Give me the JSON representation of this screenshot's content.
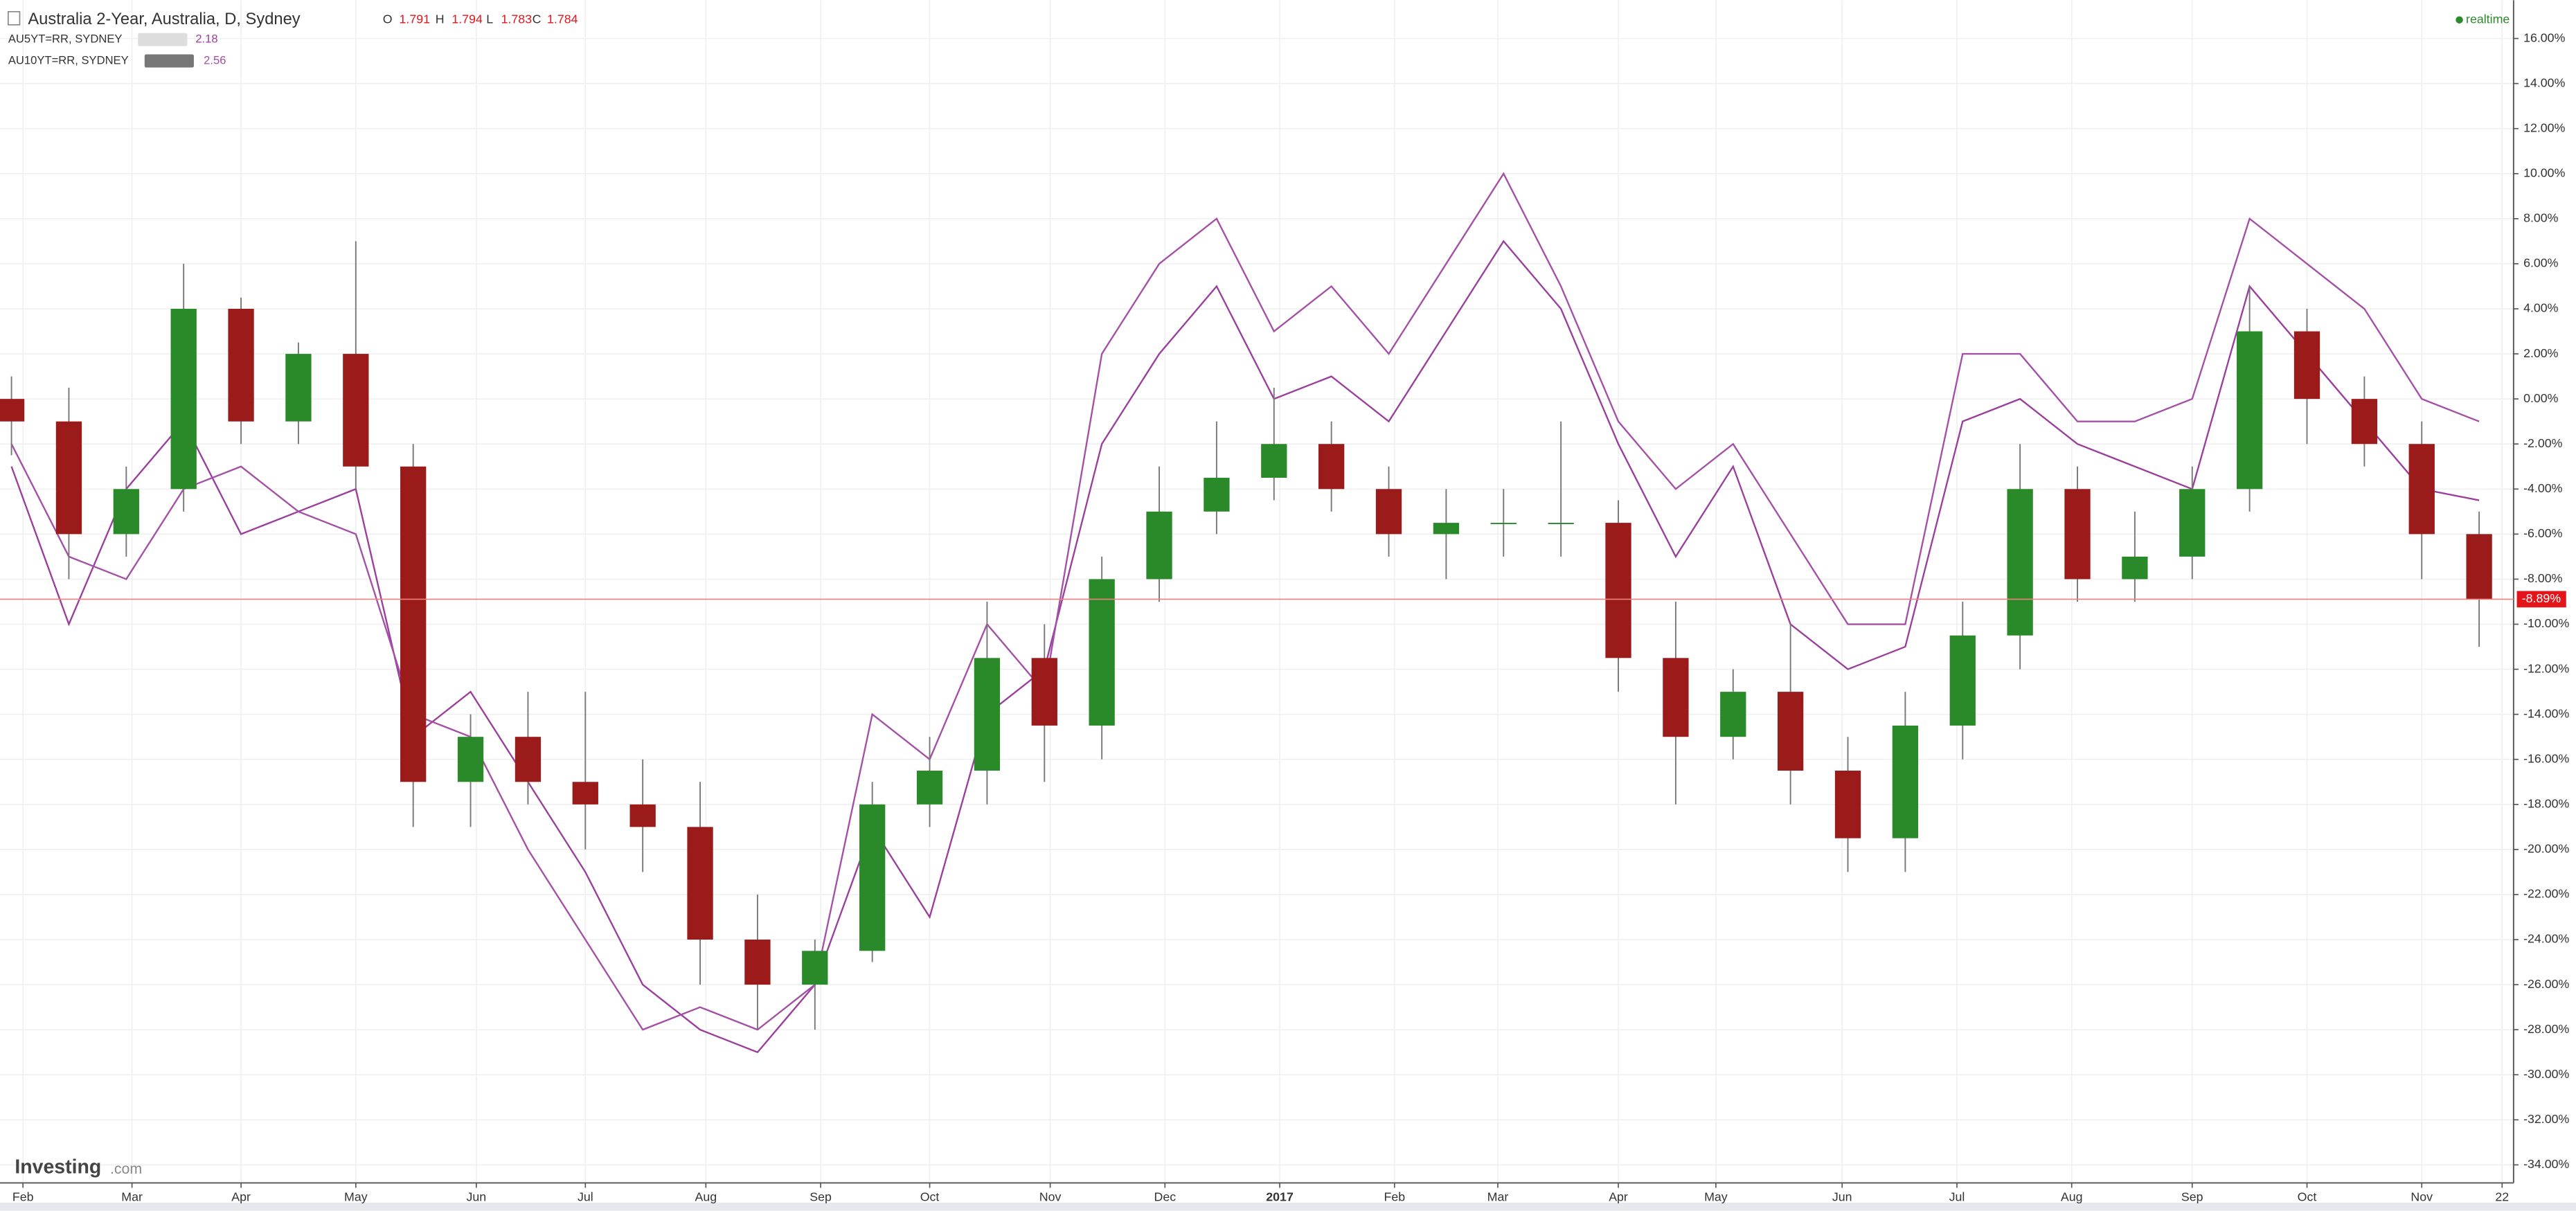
{
  "chart_data": {
    "type": "candlestick",
    "title": "Australia 2-Year, Australia, D, Sydney",
    "ohlc_readout": [
      {
        "key": "O",
        "value": 1.791
      },
      {
        "key": "H",
        "value": 1.794
      },
      {
        "key": "L",
        "value": 1.783
      },
      {
        "key": "C",
        "value": 1.784
      }
    ],
    "up_color": "#2a8a2a",
    "down_color": "#9b1b1b",
    "ohlc": {
      "open": [
        0,
        -1,
        -6,
        -4,
        4,
        -1,
        2,
        -3,
        -17,
        -15,
        -17,
        -18,
        -19,
        -24,
        -26,
        -24.5,
        -18,
        -16.5,
        -11.5,
        -14.5,
        -8,
        -5,
        -3.5,
        -2,
        -4,
        -6,
        -5.5,
        -5.5,
        -5.5,
        -11.5,
        -15,
        -13,
        -16.5,
        -19.5,
        -14.5,
        -10.5,
        -4,
        -8,
        -7,
        -4,
        3,
        0,
        -2,
        -6
      ],
      "high": [
        1,
        0.5,
        -3,
        6,
        4.5,
        2.5,
        7,
        -2,
        -14,
        -13,
        -13,
        -16,
        -17,
        -22,
        -24,
        -17,
        -15,
        -9,
        -10,
        -7,
        -3,
        -1,
        0.5,
        -1,
        -3,
        -4,
        -4,
        -1,
        -4.5,
        -9,
        -12,
        -10,
        -15,
        -13,
        -9,
        -2,
        -3,
        -5,
        -3,
        5,
        4,
        1,
        -1,
        -5
      ],
      "low": [
        -2.5,
        -8,
        -7,
        -5,
        -2,
        -2,
        -4,
        -19,
        -19,
        -18,
        -20,
        -21,
        -26,
        -28,
        -28,
        -25,
        -19,
        -18,
        -17,
        -16,
        -9,
        -6,
        -4.5,
        -5,
        -7,
        -8,
        -7,
        -7,
        -13,
        -18,
        -16,
        -18,
        -21,
        -21,
        -16,
        -12,
        -9,
        -9,
        -8,
        -5,
        -2,
        -3,
        -8,
        -11
      ],
      "close": [
        -1,
        -6,
        -4,
        4,
        -1,
        2,
        -3,
        -17,
        -15,
        -17,
        -18,
        -19,
        -24,
        -26,
        -24.5,
        -18,
        -16.5,
        -11.5,
        -14.5,
        -8,
        -5,
        -3.5,
        -2,
        -4,
        -6,
        -5.5,
        -5.5,
        -5.5,
        -11.5,
        -15,
        -13,
        -16.5,
        -19.5,
        -14.5,
        -10.5,
        -4,
        -8,
        -7,
        -4,
        3,
        0,
        -2,
        -6,
        -8.89
      ]
    },
    "overlays": [
      {
        "name": "AU5YT=RR, SYDNEY",
        "value": 2.18,
        "color": "#9a3f9c",
        "values": [
          -3,
          -10,
          -4,
          -1,
          -6,
          -5,
          -4,
          -15,
          -13,
          -17,
          -21,
          -26,
          -28,
          -29,
          -26,
          -19,
          -23,
          -14,
          -12,
          -2,
          2,
          5,
          0,
          1,
          -1,
          3,
          7,
          4,
          -2,
          -7,
          -3,
          -10,
          -12,
          -11,
          -1,
          0,
          -2,
          -3,
          -4,
          5,
          2,
          -1,
          -4,
          -4.5
        ]
      },
      {
        "name": "AU10YT=RR, SYDNEY",
        "value": 2.56,
        "color": "#a450a6",
        "values": [
          -2,
          -7,
          -8,
          -4,
          -3,
          -5,
          -6,
          -14,
          -15,
          -20,
          -24,
          -28,
          -27,
          -28,
          -26,
          -14,
          -16,
          -10,
          -13,
          2,
          6,
          8,
          3,
          5,
          2,
          6,
          10,
          5,
          -1,
          -4,
          -2,
          -6,
          -10,
          -10,
          2,
          2,
          -1,
          -1,
          0,
          8,
          6,
          4,
          0,
          -1
        ]
      }
    ],
    "last_price": {
      "value": -8.89,
      "label": "-8.89%"
    },
    "status": "realtime",
    "source": "Investing",
    "source_suffix": ".com",
    "grid": true,
    "xlim": [
      -0.2,
      43.6
    ],
    "xticks": [
      {
        "value": 0.2,
        "label": "Feb"
      },
      {
        "value": 2.1,
        "label": "Mar"
      },
      {
        "value": 4.0,
        "label": "Apr"
      },
      {
        "value": 6.0,
        "label": "May"
      },
      {
        "value": 8.1,
        "label": "Jun"
      },
      {
        "value": 10.0,
        "label": "Jul"
      },
      {
        "value": 12.1,
        "label": "Aug"
      },
      {
        "value": 14.1,
        "label": "Sep"
      },
      {
        "value": 16.0,
        "label": "Oct"
      },
      {
        "value": 18.1,
        "label": "Nov"
      },
      {
        "value": 20.1,
        "label": "Dec"
      },
      {
        "value": 22.1,
        "label": "2017"
      },
      {
        "value": 24.1,
        "label": "Feb"
      },
      {
        "value": 25.9,
        "label": "Mar"
      },
      {
        "value": 28.0,
        "label": "Apr"
      },
      {
        "value": 29.7,
        "label": "May"
      },
      {
        "value": 31.9,
        "label": "Jun"
      },
      {
        "value": 33.9,
        "label": "Jul"
      },
      {
        "value": 35.9,
        "label": "Aug"
      },
      {
        "value": 38.0,
        "label": "Sep"
      },
      {
        "value": 40.0,
        "label": "Oct"
      },
      {
        "value": 42.0,
        "label": "Nov"
      },
      {
        "value": 43.4,
        "label": "22"
      }
    ],
    "ylim": [
      -34.8,
      17.7
    ],
    "yticks": [
      {
        "value": 16,
        "label": "16.00%"
      },
      {
        "value": 14,
        "label": "14.00%"
      },
      {
        "value": 12,
        "label": "12.00%"
      },
      {
        "value": 10,
        "label": "10.00%"
      },
      {
        "value": 8,
        "label": "8.00%"
      },
      {
        "value": 6,
        "label": "6.00%"
      },
      {
        "value": 4,
        "label": "4.00%"
      },
      {
        "value": 2,
        "label": "2.00%"
      },
      {
        "value": 0,
        "label": "0.00%"
      },
      {
        "value": -2,
        "label": "-2.00%"
      },
      {
        "value": -4,
        "label": "-4.00%"
      },
      {
        "value": -6,
        "label": "-6.00%"
      },
      {
        "value": -8,
        "label": "-8.00%"
      },
      {
        "value": -10,
        "label": "-10.00%"
      },
      {
        "value": -12,
        "label": "-12.00%"
      },
      {
        "value": -14,
        "label": "-14.00%"
      },
      {
        "value": -16,
        "label": "-16.00%"
      },
      {
        "value": -18,
        "label": "-18.00%"
      },
      {
        "value": -20,
        "label": "-20.00%"
      },
      {
        "value": -22,
        "label": "-22.00%"
      },
      {
        "value": -24,
        "label": "-24.00%"
      },
      {
        "value": -26,
        "label": "-26.00%"
      },
      {
        "value": -28,
        "label": "-28.00%"
      },
      {
        "value": -30,
        "label": "-30.00%"
      },
      {
        "value": -32,
        "label": "-32.00%"
      },
      {
        "value": -34,
        "label": "-34.00%"
      }
    ]
  }
}
